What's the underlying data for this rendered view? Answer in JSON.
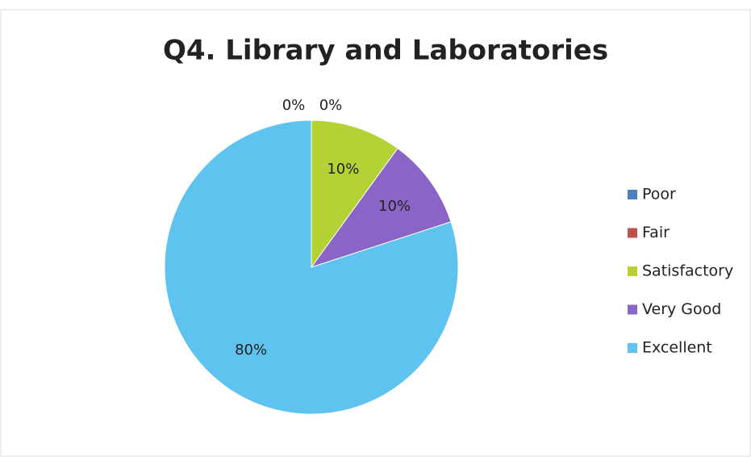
{
  "chart_data": {
    "type": "pie",
    "title": "Q4. Library and Laboratories",
    "categories": [
      "Poor",
      "Fair",
      "Satisfactory",
      "Very Good",
      "Excellent"
    ],
    "values": [
      0,
      0,
      10,
      10,
      80
    ],
    "value_labels": [
      "0%",
      "0%",
      "10%",
      "10%",
      "80%"
    ],
    "colors": [
      "#4f81bd",
      "#c0504d",
      "#b3d236",
      "#8a64c6",
      "#5ec3ee"
    ],
    "legend": "right"
  }
}
